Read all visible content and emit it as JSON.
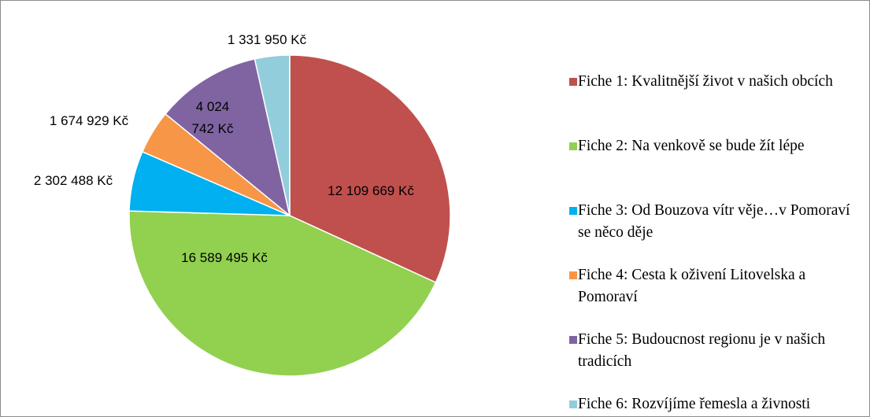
{
  "chart_data": {
    "type": "pie",
    "categories": [
      "Fiche 1: Kvalitnější život v našich obcích",
      "Fiche 2: Na venkově se bude žít lépe",
      "Fiche 3: Od Bouzova vítr věje…v Pomoraví se něco děje",
      "Fiche 4: Cesta k oživení Litovelska a Pomoraví",
      "Fiche 5: Budoucnost regionu je v našich tradicích",
      "Fiche 6: Rozvíjíme řemesla a živnosti"
    ],
    "values": [
      12109669,
      16589495,
      2302488,
      1674929,
      4024742,
      1331950
    ],
    "value_labels": [
      "12 109 669 Kč",
      "16 589 495 Kč",
      "2 302 488 Kč",
      "1 674 929 Kč",
      "4 024 742 Kč",
      "1 331 950 Kč"
    ],
    "colors": [
      "#c0504d",
      "#92d050",
      "#00b0f0",
      "#f79646",
      "#8064a2",
      "#92cddc"
    ],
    "legend": "right"
  }
}
